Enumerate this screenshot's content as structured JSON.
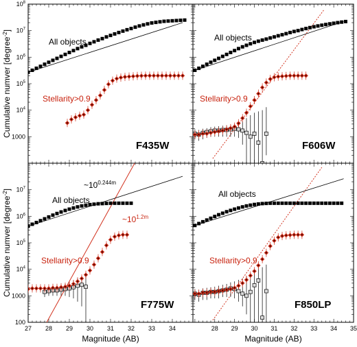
{
  "chart_data": {
    "type": "scatter",
    "xlabel": "Magnitude (AB)",
    "ylabel_parts": {
      "main": "Cumulative numver  [degree",
      "sup": "-2",
      "close": "]"
    },
    "yscale": "log",
    "xlim": [
      27,
      35
    ],
    "ylim": [
      100,
      100000000
    ],
    "ytick_labels": [
      {
        "v": 100,
        "base": "100",
        "sup": ""
      },
      {
        "v": 1000,
        "base": "1000",
        "sup": ""
      },
      {
        "v": 10000,
        "base": "10",
        "sup": "4"
      },
      {
        "v": 100000,
        "base": "10",
        "sup": "5"
      },
      {
        "v": 1000000,
        "base": "10",
        "sup": "6"
      },
      {
        "v": 10000000,
        "base": "10",
        "sup": "7"
      },
      {
        "v": 100000000,
        "base": "10",
        "sup": "8"
      }
    ],
    "xtick_labels": [
      "27",
      "28",
      "29",
      "30",
      "31",
      "32",
      "33",
      "34",
      "35"
    ],
    "colors": {
      "all": "#000000",
      "stellar": "#c8230f",
      "sub": "#999999",
      "fit": "#d2321e"
    },
    "panels": [
      {
        "filter": "F435W",
        "all_label": "All objects",
        "stellar_label": "Stellarity>0.9",
        "all_objects": {
          "mstart": 27.0,
          "step": 0.2,
          "values": [
            270000.0,
            320000.0,
            380000.0,
            450000.0,
            540000.0,
            640000.0,
            760000.0,
            900000.0,
            1070000.0,
            1270000.0,
            1500000.0,
            1770000.0,
            2100000.0,
            2450000.0,
            2800000.0,
            3300000.0,
            3800000.0,
            4400000.0,
            5000000.0,
            5800000.0,
            6600000.0,
            7500000.0,
            8500000.0,
            9600000.0,
            10800000.0,
            12000000.0,
            13500000.0,
            15000000.0,
            16500000.0,
            18000000.0,
            19500000.0,
            20500000.0,
            21500000.0,
            22500000.0,
            23000000.0,
            23500000.0,
            24000000.0,
            24500000.0,
            25000000.0
          ]
        },
        "all_model": {
          "m": [
            27.0,
            34.5
          ],
          "v": [
            270000.0,
            20000000.0
          ]
        },
        "stellar": {
          "mstart": 28.9,
          "step": 0.2,
          "values": [
            3300.0,
            4500.0,
            5400.0,
            6200.0,
            6800.0,
            10000.0,
            16000.0,
            24000.0,
            36000.0,
            58000.0,
            95000.0,
            130000.0,
            155000.0,
            170000.0,
            180000.0,
            185000.0,
            190000.0,
            195000.0,
            198000.0,
            200000.0,
            200000.0,
            200000.0,
            200000.0,
            200000.0,
            200000.0,
            200000.0,
            200000.0,
            200000.0,
            200000.0
          ]
        }
      },
      {
        "filter": "F606W",
        "all_label": "All objects",
        "stellar_label": "Stellarity>0.9",
        "all_objects": {
          "mstart": 27.0,
          "step": 0.2,
          "values": [
            320000.0,
            380000.0,
            450000.0,
            540000.0,
            640000.0,
            760000.0,
            900000.0,
            1070000.0,
            1270000.0,
            1500000.0,
            1770000.0,
            2100000.0,
            2450000.0,
            2800000.0,
            3200000.0,
            3600000.0,
            4000000.0,
            4400000.0,
            4800000.0,
            5300000.0,
            5800000.0,
            6400000.0,
            7000000.0,
            7700000.0,
            8500000.0,
            9300000.0,
            10000000.0,
            11000000.0,
            12000000.0,
            13000000.0,
            14000000.0,
            15000000.0,
            16000000.0,
            17000000.0,
            18000000.0,
            19000000.0,
            20000000.0,
            21000000.0,
            22000000.0
          ]
        },
        "all_model": {
          "m": [
            27.0,
            34.5
          ],
          "v": [
            320000.0,
            22000000.0
          ]
        },
        "fit_line": {
          "m": [
            27.9,
            33.5
          ],
          "v": [
            150,
            60000000.0
          ],
          "dashed": true
        },
        "stellar": {
          "mstart": 27.0,
          "step": 0.2,
          "values": [
            1200.0,
            1200.0,
            1300.0,
            1300.0,
            1400.0,
            1500.0,
            1600.0,
            1700.0,
            1900.0,
            2100.0,
            2400.0,
            3200.0,
            5000.0,
            8000.0,
            14000.0,
            24000.0,
            42000.0,
            72000.0,
            110000.0,
            150000.0,
            175000.0,
            185000.0,
            190000.0,
            195000.0,
            200000.0,
            200000.0,
            200000.0,
            200000.0,
            200000.0
          ]
        },
        "subtracted": {
          "m": [
            27.0,
            27.2,
            27.4,
            27.6,
            27.8,
            28.0,
            28.2,
            28.4,
            28.6,
            28.8,
            29.0,
            29.2,
            29.4,
            29.6,
            29.8,
            30.0,
            30.2,
            30.4,
            30.6
          ],
          "v": [
            1300.0,
            1200.0,
            1400.0,
            1500.0,
            1600.0,
            1700.0,
            1700.0,
            1800.0,
            1800.0,
            1900.0,
            2000.0,
            1900.0,
            1700.0,
            1400.0,
            1000.0,
            1300.0,
            600.0,
            100.0,
            1300.0
          ],
          "err_lo": [
            800.0,
            700.0,
            800.0,
            900.0,
            1000.0,
            1000.0,
            1000.0,
            1000.0,
            1000.0,
            1000.0,
            1000.0,
            900.0,
            500.0,
            100.0,
            100.0,
            100.0,
            100.0,
            100.0,
            200.0
          ],
          "err_hi": [
            1900.0,
            1800.0,
            2000.0,
            2100.0,
            2300.0,
            2400.0,
            2500.0,
            2600.0,
            2700.0,
            2800.0,
            3000.0,
            3500.0,
            4000.0,
            5000.0,
            6500.0,
            8000.0,
            9000.0,
            10000.0,
            13000.0
          ]
        }
      },
      {
        "filter": "F775W",
        "all_label": "All objects",
        "stellar_label": "Stellarity>0.9",
        "slope_label_all": {
          "base": "~10",
          "sup": "0.244m"
        },
        "slope_label_fit": {
          "base": "~10",
          "sup": "1.2m"
        },
        "all_objects": {
          "mstart": 27.0,
          "step": 0.2,
          "values": [
            420000.0,
            500000.0,
            580000.0,
            680000.0,
            800000.0,
            940000.0,
            1100000.0,
            1270000.0,
            1450000.0,
            1650000.0,
            1850000.0,
            2050000.0,
            2250000.0,
            2450000.0,
            2600000.0,
            2750000.0,
            2850000.0,
            2950000.0,
            3000000.0,
            3050000.0,
            3100000.0,
            3100000.0,
            3100000.0,
            3100000.0,
            3100000.0,
            3100000.0
          ]
        },
        "all_model": {
          "m": [
            27.0,
            34.5
          ],
          "v": [
            420000.0,
            32000000.0
          ]
        },
        "fit_line": {
          "m": [
            27.9,
            32.2
          ],
          "v": [
            100,
            110000000.0
          ],
          "dashed": false
        },
        "stellar": {
          "mstart": 27.0,
          "step": 0.2,
          "values": [
            1800.0,
            1900.0,
            1900.0,
            1900.0,
            1900.0,
            1900.0,
            2000.0,
            2000.0,
            2100.0,
            2200.0,
            2400.0,
            2800.0,
            3500.0,
            4500.0,
            6200.0,
            9000.0,
            15000.0,
            26000.0,
            45000.0,
            80000.0,
            130000.0,
            170000.0,
            190000.0,
            200000.0,
            200000.0
          ]
        },
        "subtracted": {
          "m": [
            27.8,
            28.0,
            28.2,
            28.4,
            28.6,
            28.8,
            29.0,
            29.2,
            29.4,
            29.6,
            29.8
          ],
          "v": [
            1400.0,
            1500.0,
            1600.0,
            1600.0,
            1700.0,
            1800.0,
            1900.0,
            2100.0,
            2400.0,
            2600.0,
            2200.0
          ],
          "err_lo": [
            900.0,
            1000.0,
            1000.0,
            1000.0,
            1000.0,
            1000.0,
            900.0,
            800.0,
            600.0,
            400.0,
            100.0
          ],
          "err_hi": [
            2000.0,
            2200.0,
            2300.0,
            2400.0,
            2600.0,
            2800.0,
            3200.0,
            3800.0,
            4600.0,
            5500.0,
            6500.0
          ]
        }
      },
      {
        "filter": "F850LP",
        "all_label": "All objects",
        "stellar_label": "Stellarity>0.9",
        "all_objects": {
          "mstart": 27.0,
          "step": 0.2,
          "values": [
            450000.0,
            530000.0,
            620000.0,
            720000.0,
            840000.0,
            980000.0,
            1140000.0,
            1300000.0,
            1480000.0,
            1660000.0,
            1850000.0,
            2050000.0,
            2250000.0,
            2450000.0,
            2620000.0,
            2780000.0,
            2900000.0,
            3000000.0,
            3050000.0,
            3100000.0,
            3100000.0,
            3100000.0,
            3100000.0,
            3100000.0,
            3100000.0,
            3100000.0,
            3100000.0,
            3100000.0,
            3100000.0,
            3100000.0,
            3100000.0,
            3100000.0,
            3100000.0,
            3100000.0,
            3100000.0,
            3100000.0,
            3100000.0,
            3100000.0
          ]
        },
        "all_model": {
          "m": [
            27.0,
            34.5
          ],
          "v": [
            450000.0,
            26000000.0
          ]
        },
        "fit_line": {
          "m": [
            27.9,
            33.4
          ],
          "v": [
            120,
            70000000.0
          ],
          "dashed": true
        },
        "stellar": {
          "mstart": 27.0,
          "step": 0.2,
          "values": [
            1200.0,
            1200.0,
            1300.0,
            1300.0,
            1400.0,
            1400.0,
            1500.0,
            1600.0,
            1700.0,
            1800.0,
            2000.0,
            2400.0,
            3000.0,
            4000.0,
            5800.0,
            8500.0,
            14000.0,
            24000.0,
            42000.0,
            75000.0,
            120000.0,
            160000.0,
            180000.0,
            190000.0,
            195000.0,
            200000.0,
            200000.0,
            200000.0
          ]
        },
        "subtracted": {
          "m": [
            27.0,
            27.2,
            27.4,
            27.6,
            27.8,
            28.0,
            28.2,
            28.4,
            28.6,
            28.8,
            29.0,
            29.2,
            29.4,
            29.6,
            29.8,
            30.0,
            30.2,
            30.4,
            30.6
          ],
          "v": [
            1200.0,
            1100.0,
            1300.0,
            1300.0,
            1400.0,
            1400.0,
            1500.0,
            1600.0,
            1700.0,
            1900.0,
            1800.0,
            1500.0,
            1200.0,
            1000.0,
            1400.0,
            2500.0,
            3800.0,
            150.0,
            1500.0
          ],
          "err_lo": [
            700.0,
            600.0,
            700.0,
            700.0,
            800.0,
            800.0,
            800.0,
            900.0,
            900.0,
            900.0,
            800.0,
            600.0,
            400.0,
            200.0,
            100.0,
            100.0,
            100.0,
            100.0,
            100.0
          ],
          "err_hi": [
            1800.0,
            1700.0,
            1900.0,
            2000.0,
            2100.0,
            2200.0,
            2400.0,
            2600.0,
            2800.0,
            3200.0,
            3500.0,
            4000.0,
            4500.0,
            5500.0,
            7000.0,
            9500.0,
            15000.0,
            12000.0,
            15000.0
          ]
        }
      }
    ]
  }
}
